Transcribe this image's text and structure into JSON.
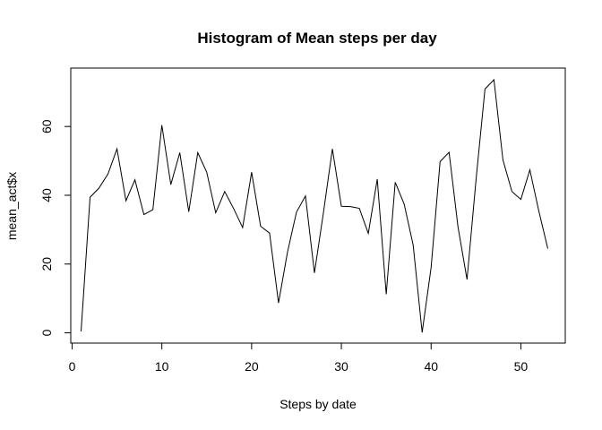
{
  "chart_data": {
    "type": "line",
    "title": "Histogram of Mean steps per day",
    "xlabel": "Steps by date",
    "ylabel": "mean_act$x",
    "xlim": [
      1,
      53
    ],
    "ylim": [
      0,
      73.6
    ],
    "x_ticks": [
      0,
      10,
      20,
      30,
      40,
      50
    ],
    "y_ticks": [
      0,
      20,
      40,
      60
    ],
    "grid": false,
    "legend": "none",
    "series": [
      {
        "color": "#000000",
        "x": [
          1,
          2,
          3,
          4,
          5,
          6,
          7,
          8,
          9,
          10,
          11,
          12,
          13,
          14,
          15,
          16,
          17,
          18,
          19,
          20,
          21,
          22,
          23,
          24,
          25,
          26,
          27,
          28,
          29,
          30,
          31,
          32,
          33,
          34,
          35,
          36,
          37,
          38,
          39,
          40,
          41,
          42,
          43,
          44,
          45,
          46,
          47,
          48,
          49,
          50,
          51,
          52,
          53
        ],
        "values": [
          0.4,
          39.4,
          42.1,
          46.2,
          53.5,
          38.4,
          44.5,
          34.4,
          35.8,
          60.4,
          43.1,
          52.4,
          35.2,
          52.4,
          46.7,
          34.9,
          41.1,
          36.1,
          30.6,
          46.7,
          31.0,
          29.0,
          8.7,
          23.5,
          35.1,
          39.8,
          17.4,
          34.9,
          53.5,
          36.8,
          36.7,
          36.2,
          28.9,
          44.7,
          11.2,
          43.8,
          37.4,
          25.5,
          0.1,
          19.0,
          49.8,
          52.5,
          30.7,
          15.5,
          44.4,
          70.9,
          73.6,
          50.3,
          41.1,
          38.8,
          47.4,
          35.4,
          24.5
        ]
      }
    ]
  }
}
